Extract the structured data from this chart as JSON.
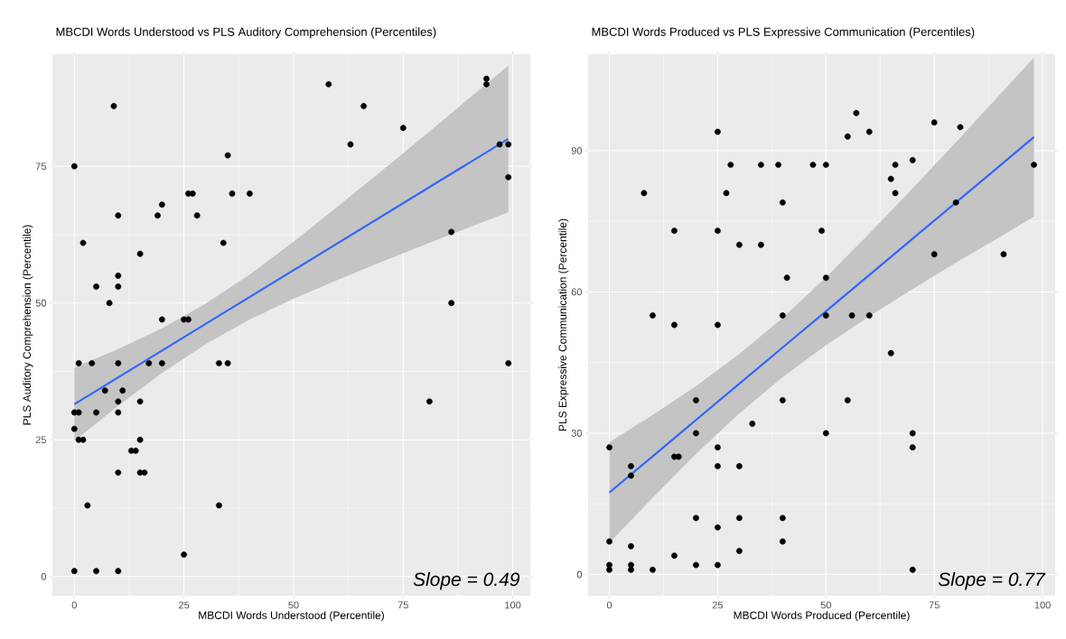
{
  "chart_data": [
    {
      "type": "scatter",
      "title": "MBCDI Words Understood vs PLS Auditory Comprehension (Percentiles)",
      "xlabel": "MBCDI Words Understood (Percentile)",
      "ylabel": "PLS Auditory Comprehension (Percentile)",
      "xlim": [
        -5,
        104
      ],
      "ylim": [
        -3.5,
        95.5
      ],
      "xticks": [
        0,
        25,
        50,
        75,
        100
      ],
      "yticks": [
        0,
        25,
        50,
        75
      ],
      "grid": true,
      "annotations": [
        "Slope = 0.49"
      ],
      "series": [
        {
          "type": "scatter",
          "marker": "circle",
          "color": "#000000",
          "x": [
            0,
            9,
            35,
            26,
            27,
            36,
            40,
            20,
            10,
            19,
            28,
            2,
            34,
            15,
            10,
            5,
            10,
            8,
            20,
            25,
            26,
            1,
            4,
            10,
            17,
            20,
            33,
            35,
            7,
            11,
            10,
            15,
            0,
            1,
            5,
            10,
            0,
            1,
            2,
            15,
            13,
            14,
            10,
            15,
            16,
            3,
            33,
            25,
            0,
            5,
            10,
            58,
            66,
            75,
            63,
            94,
            94,
            97,
            99,
            99,
            86,
            86,
            99,
            81
          ],
          "values": [
            75,
            86,
            77,
            70,
            70,
            70,
            70,
            68,
            66,
            66,
            66,
            61,
            61,
            59,
            55,
            53,
            53,
            50,
            47,
            47,
            47,
            39,
            39,
            39,
            39,
            39,
            39,
            39,
            34,
            34,
            32,
            32,
            30,
            30,
            30,
            30,
            27,
            25,
            25,
            25,
            23,
            23,
            19,
            19,
            19,
            13,
            13,
            4,
            1,
            1,
            1,
            90,
            86,
            82,
            79,
            91,
            90,
            79,
            79,
            73,
            63,
            50,
            39,
            32
          ]
        },
        {
          "type": "line",
          "color": "#3366ff",
          "x": [
            0,
            10,
            20,
            30,
            40,
            50,
            60,
            70,
            80,
            90,
            99
          ],
          "values": [
            31.5,
            36.4,
            41.3,
            46.2,
            51.1,
            56.0,
            60.9,
            65.8,
            70.7,
            75.6,
            80.0
          ],
          "lower": [
            24.8,
            31.2,
            37.2,
            42.5,
            47.0,
            50.8,
            54.2,
            57.5,
            60.7,
            63.8,
            66.6
          ],
          "upper": [
            38.2,
            41.6,
            45.4,
            49.9,
            55.2,
            61.2,
            67.6,
            74.1,
            80.7,
            87.4,
            93.4
          ]
        }
      ]
    },
    {
      "type": "scatter",
      "title": "MBCDI Words Produced vs PLS Expressive Communication (Percentiles)",
      "xlabel": "MBCDI Words Produced (Percentile)",
      "ylabel": "PLS Expressive Communication (Percentile)",
      "xlim": [
        -4.9,
        102.9
      ],
      "ylim": [
        -4.5,
        110.5
      ],
      "xticks": [
        0,
        25,
        50,
        75,
        100
      ],
      "yticks": [
        0,
        30,
        60,
        90
      ],
      "grid": true,
      "annotations": [
        "Slope = 0.77"
      ],
      "series": [
        {
          "type": "scatter",
          "marker": "circle",
          "color": "#000000",
          "x": [
            25,
            28,
            35,
            39,
            47,
            8,
            27,
            40,
            15,
            25,
            30,
            35,
            41,
            10,
            15,
            25,
            40,
            20,
            40,
            33,
            20,
            0,
            25,
            5,
            5,
            15,
            16,
            25,
            30,
            20,
            30,
            40,
            25,
            0,
            5,
            40,
            30,
            15,
            0,
            0,
            5,
            5,
            10,
            20,
            25,
            50,
            57,
            55,
            60,
            75,
            81,
            66,
            70,
            65,
            66,
            98,
            80,
            49,
            75,
            91,
            50,
            50,
            56,
            60,
            65,
            55,
            50,
            70,
            70,
            70
          ],
          "values": [
            94,
            87,
            87,
            87,
            87,
            81,
            81,
            79,
            73,
            73,
            70,
            70,
            63,
            55,
            53,
            53,
            55,
            37,
            37,
            32,
            30,
            27,
            27,
            23,
            21,
            25,
            25,
            23,
            23,
            12,
            12,
            12,
            10,
            7,
            6,
            7,
            5,
            4,
            2,
            1,
            2,
            1,
            1,
            2,
            2,
            87,
            98,
            93,
            94,
            96,
            95,
            87,
            88,
            84,
            81,
            87,
            79,
            73,
            68,
            68,
            63,
            55,
            55,
            55,
            47,
            37,
            30,
            30,
            27,
            1
          ]
        },
        {
          "type": "line",
          "color": "#3366ff",
          "x": [
            0,
            10,
            20,
            30,
            40,
            50,
            60,
            70,
            80,
            90,
            98
          ],
          "values": [
            17.4,
            25.1,
            32.8,
            40.5,
            48.2,
            55.9,
            63.6,
            71.3,
            79.0,
            86.7,
            92.9
          ],
          "lower": [
            6.7,
            16.3,
            25.6,
            34.2,
            41.9,
            48.7,
            54.8,
            60.6,
            66.2,
            71.6,
            76.0
          ],
          "upper": [
            28.1,
            33.9,
            40.0,
            46.8,
            54.5,
            63.1,
            72.4,
            82.0,
            91.8,
            101.8,
            109.8
          ]
        }
      ]
    }
  ]
}
